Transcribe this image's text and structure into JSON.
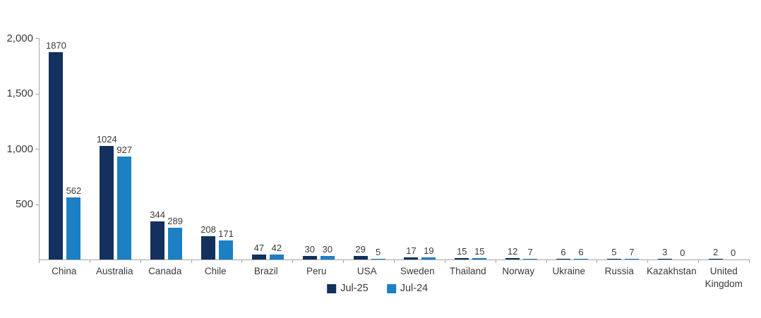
{
  "chart": {
    "background": "#FFFFFF",
    "axis_color": "#A6A6A6",
    "text_color": "#3A3A3A"
  },
  "chart_data": {
    "type": "bar",
    "title": "",
    "xlabel": "",
    "ylabel": "",
    "categories": [
      "China",
      "Australia",
      "Canada",
      "Chile",
      "Brazil",
      "Peru",
      "USA",
      "Sweden",
      "Thailand",
      "Norway",
      "Ukraine",
      "Russia",
      "Kazakhstan",
      "United Kingdom"
    ],
    "series": [
      {
        "name": "Jul-25",
        "color": "#13305E",
        "values": [
          1870,
          1024,
          344,
          208,
          47,
          30,
          29,
          17,
          15,
          12,
          6,
          5,
          3,
          2
        ]
      },
      {
        "name": "Jul-24",
        "color": "#1B80C4",
        "values": [
          562,
          927,
          289,
          171,
          42,
          30,
          5,
          19,
          15,
          7,
          6,
          7,
          0,
          0
        ]
      }
    ],
    "ylim": [
      0,
      2000
    ],
    "yticks": [
      {
        "value": 500,
        "label": "500"
      },
      {
        "value": 1000,
        "label": "1,000"
      },
      {
        "value": 1500,
        "label": "1,500"
      },
      {
        "value": 2000,
        "label": "2,000"
      }
    ],
    "grid": false,
    "value_labels": true,
    "legend_position": "bottom-center"
  }
}
